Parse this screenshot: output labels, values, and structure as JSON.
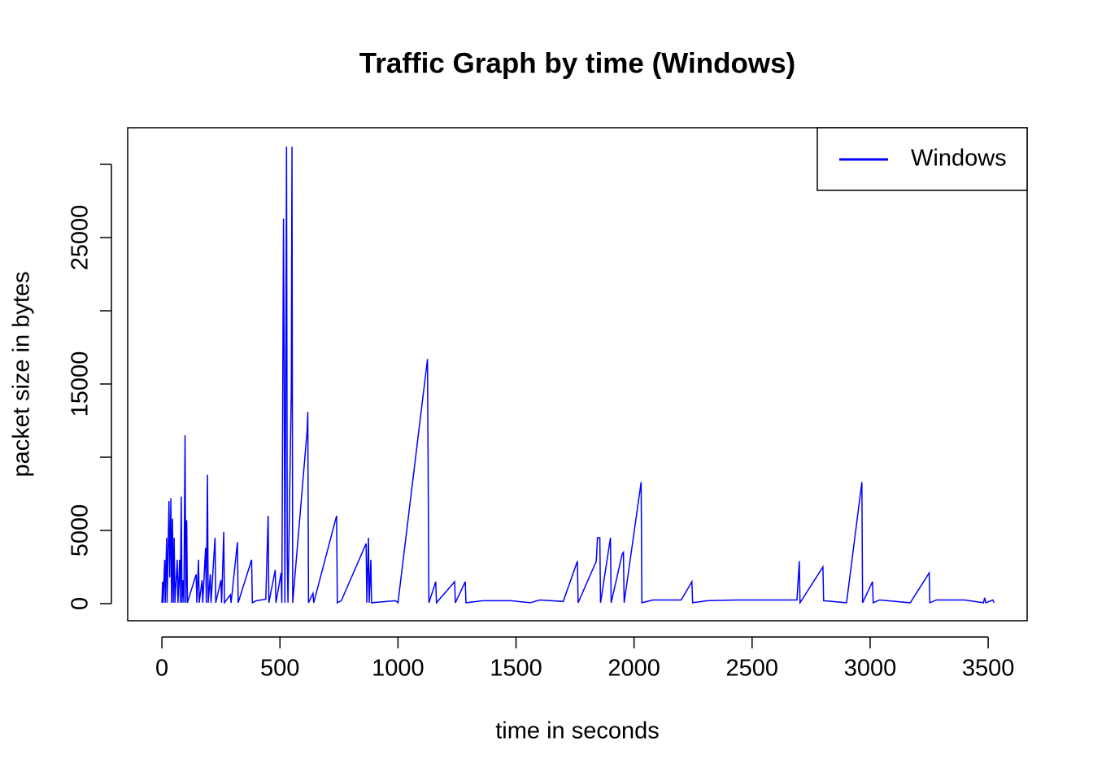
{
  "chart_data": {
    "type": "line",
    "title": "Traffic Graph by time (Windows)",
    "x_label": "time in seconds",
    "y_label": "packet size in bytes",
    "legend_position": "top-right",
    "xlim": [
      -145,
      3665
    ],
    "ylim": [
      -1167,
      32500
    ],
    "xticks": [
      0,
      500,
      1000,
      1500,
      2000,
      2500,
      3000,
      3500
    ],
    "yticks": [
      0,
      5000,
      15000,
      25000
    ],
    "yticks_unlabeled": [
      10000,
      20000,
      30000
    ],
    "x": [
      0,
      3,
      5,
      12,
      14,
      20,
      22,
      30,
      33,
      38,
      41,
      45,
      48,
      52,
      55,
      65,
      68,
      75,
      78,
      82,
      85,
      90,
      93,
      98,
      101,
      105,
      108,
      145,
      148,
      155,
      158,
      170,
      173,
      185,
      188,
      193,
      196,
      205,
      208,
      225,
      228,
      250,
      253,
      262,
      265,
      290,
      293,
      320,
      323,
      380,
      383,
      400,
      440,
      450,
      453,
      480,
      483,
      505,
      508,
      515,
      518,
      521,
      528,
      531,
      534,
      548,
      551,
      554,
      615,
      618,
      621,
      640,
      643,
      740,
      743,
      760,
      865,
      868,
      875,
      878,
      885,
      888,
      990,
      1000,
      1125,
      1128,
      1131,
      1160,
      1163,
      1240,
      1243,
      1285,
      1288,
      1360,
      1480,
      1560,
      1600,
      1700,
      1760,
      1763,
      1840,
      1845,
      1855,
      1858,
      1900,
      1903,
      1950,
      1955,
      1958,
      2030,
      2033,
      2080,
      2200,
      2245,
      2248,
      2310,
      2440,
      2560,
      2690,
      2700,
      2703,
      2800,
      2803,
      2900,
      2965,
      2968,
      3010,
      3013,
      3040,
      3170,
      3250,
      3253,
      3280,
      3400,
      3480,
      3485,
      3490,
      3520,
      3525
    ],
    "series": [
      {
        "name": "Windows",
        "color": "#0000ff",
        "values": [
          60,
          1500,
          60,
          3000,
          60,
          4500,
          60,
          7000,
          1800,
          7200,
          60,
          5800,
          60,
          4500,
          60,
          3000,
          60,
          3000,
          60,
          7300,
          60,
          1600,
          60,
          11500,
          60,
          5700,
          60,
          2000,
          60,
          3000,
          60,
          1600,
          60,
          3800,
          60,
          8800,
          60,
          2000,
          60,
          4500,
          60,
          1600,
          60,
          4900,
          60,
          600,
          60,
          4200,
          60,
          3000,
          60,
          200,
          300,
          6000,
          60,
          2300,
          60,
          2100,
          60,
          26300,
          16000,
          60,
          31200,
          3300,
          60,
          14500,
          31200,
          60,
          11800,
          13100,
          60,
          700,
          60,
          6000,
          60,
          200,
          4100,
          60,
          4500,
          60,
          3000,
          60,
          200,
          60,
          16700,
          8300,
          60,
          1500,
          60,
          1500,
          60,
          1500,
          60,
          200,
          200,
          60,
          250,
          150,
          2900,
          60,
          2900,
          4500,
          4500,
          60,
          4500,
          60,
          3400,
          3500,
          60,
          8300,
          60,
          250,
          250,
          1500,
          60,
          200,
          250,
          250,
          250,
          2900,
          60,
          2500,
          200,
          60,
          8300,
          60,
          1500,
          60,
          250,
          60,
          2100,
          60,
          250,
          250,
          60,
          400,
          60,
          250,
          60
        ]
      }
    ]
  }
}
